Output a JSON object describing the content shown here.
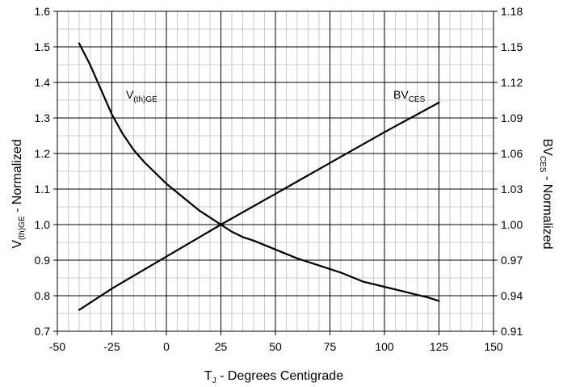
{
  "chart_data": {
    "type": "line",
    "x_axis": {
      "label_main": "T",
      "label_sub": "J",
      "label_rest": " - Degrees Centigrade",
      "range": [
        -50,
        150
      ],
      "ticks": [
        -50,
        -25,
        0,
        25,
        50,
        75,
        100,
        125,
        150
      ],
      "tick_labels": [
        "-50",
        "-25",
        "0",
        "25",
        "50",
        "75",
        "100",
        "125",
        "150"
      ],
      "minor_step": 5,
      "major_step": 25
    },
    "y_left": {
      "label_main": "V",
      "label_sub": "(th)GE",
      "label_rest": " - Normalized",
      "range": [
        0.7,
        1.6
      ],
      "ticks": [
        0.7,
        0.8,
        0.9,
        1.0,
        1.1,
        1.2,
        1.3,
        1.4,
        1.5,
        1.6
      ],
      "tick_labels": [
        "0.7",
        "0.8",
        "0.9",
        "1.0",
        "1.1",
        "1.2",
        "1.3",
        "1.4",
        "1.5",
        "1.6"
      ],
      "minor_step": 0.05
    },
    "y_right": {
      "label_main": "BV",
      "label_sub": "CES",
      "label_rest": " - Normalized",
      "range": [
        0.91,
        1.18
      ],
      "ticks": [
        0.91,
        0.94,
        0.97,
        1.0,
        1.03,
        1.06,
        1.09,
        1.12,
        1.15,
        1.18
      ],
      "tick_labels": [
        "0.91",
        "0.94",
        "0.97",
        "1.00",
        "1.03",
        "1.06",
        "1.09",
        "1.12",
        "1.15",
        "1.18"
      ]
    },
    "grid": true,
    "series": [
      {
        "name_main": "V",
        "name_sub": "(th)GE",
        "axis": "left",
        "x": [
          -40,
          -35,
          -30,
          -25,
          -20,
          -15,
          -10,
          -5,
          0,
          5,
          10,
          15,
          20,
          25,
          30,
          35,
          40,
          50,
          60,
          70,
          80,
          90,
          100,
          110,
          120,
          125
        ],
        "y": [
          1.51,
          1.45,
          1.38,
          1.31,
          1.255,
          1.21,
          1.175,
          1.145,
          1.115,
          1.09,
          1.065,
          1.04,
          1.02,
          1.0,
          0.98,
          0.965,
          0.955,
          0.93,
          0.905,
          0.885,
          0.865,
          0.84,
          0.825,
          0.81,
          0.795,
          0.785
        ]
      },
      {
        "name_main": "BV",
        "name_sub": "CES",
        "axis": "right",
        "x": [
          -40,
          -25,
          0,
          25,
          50,
          75,
          100,
          125
        ],
        "y": [
          0.928,
          0.946,
          0.973,
          1.0,
          1.026,
          1.052,
          1.078,
          1.103
        ]
      }
    ]
  }
}
